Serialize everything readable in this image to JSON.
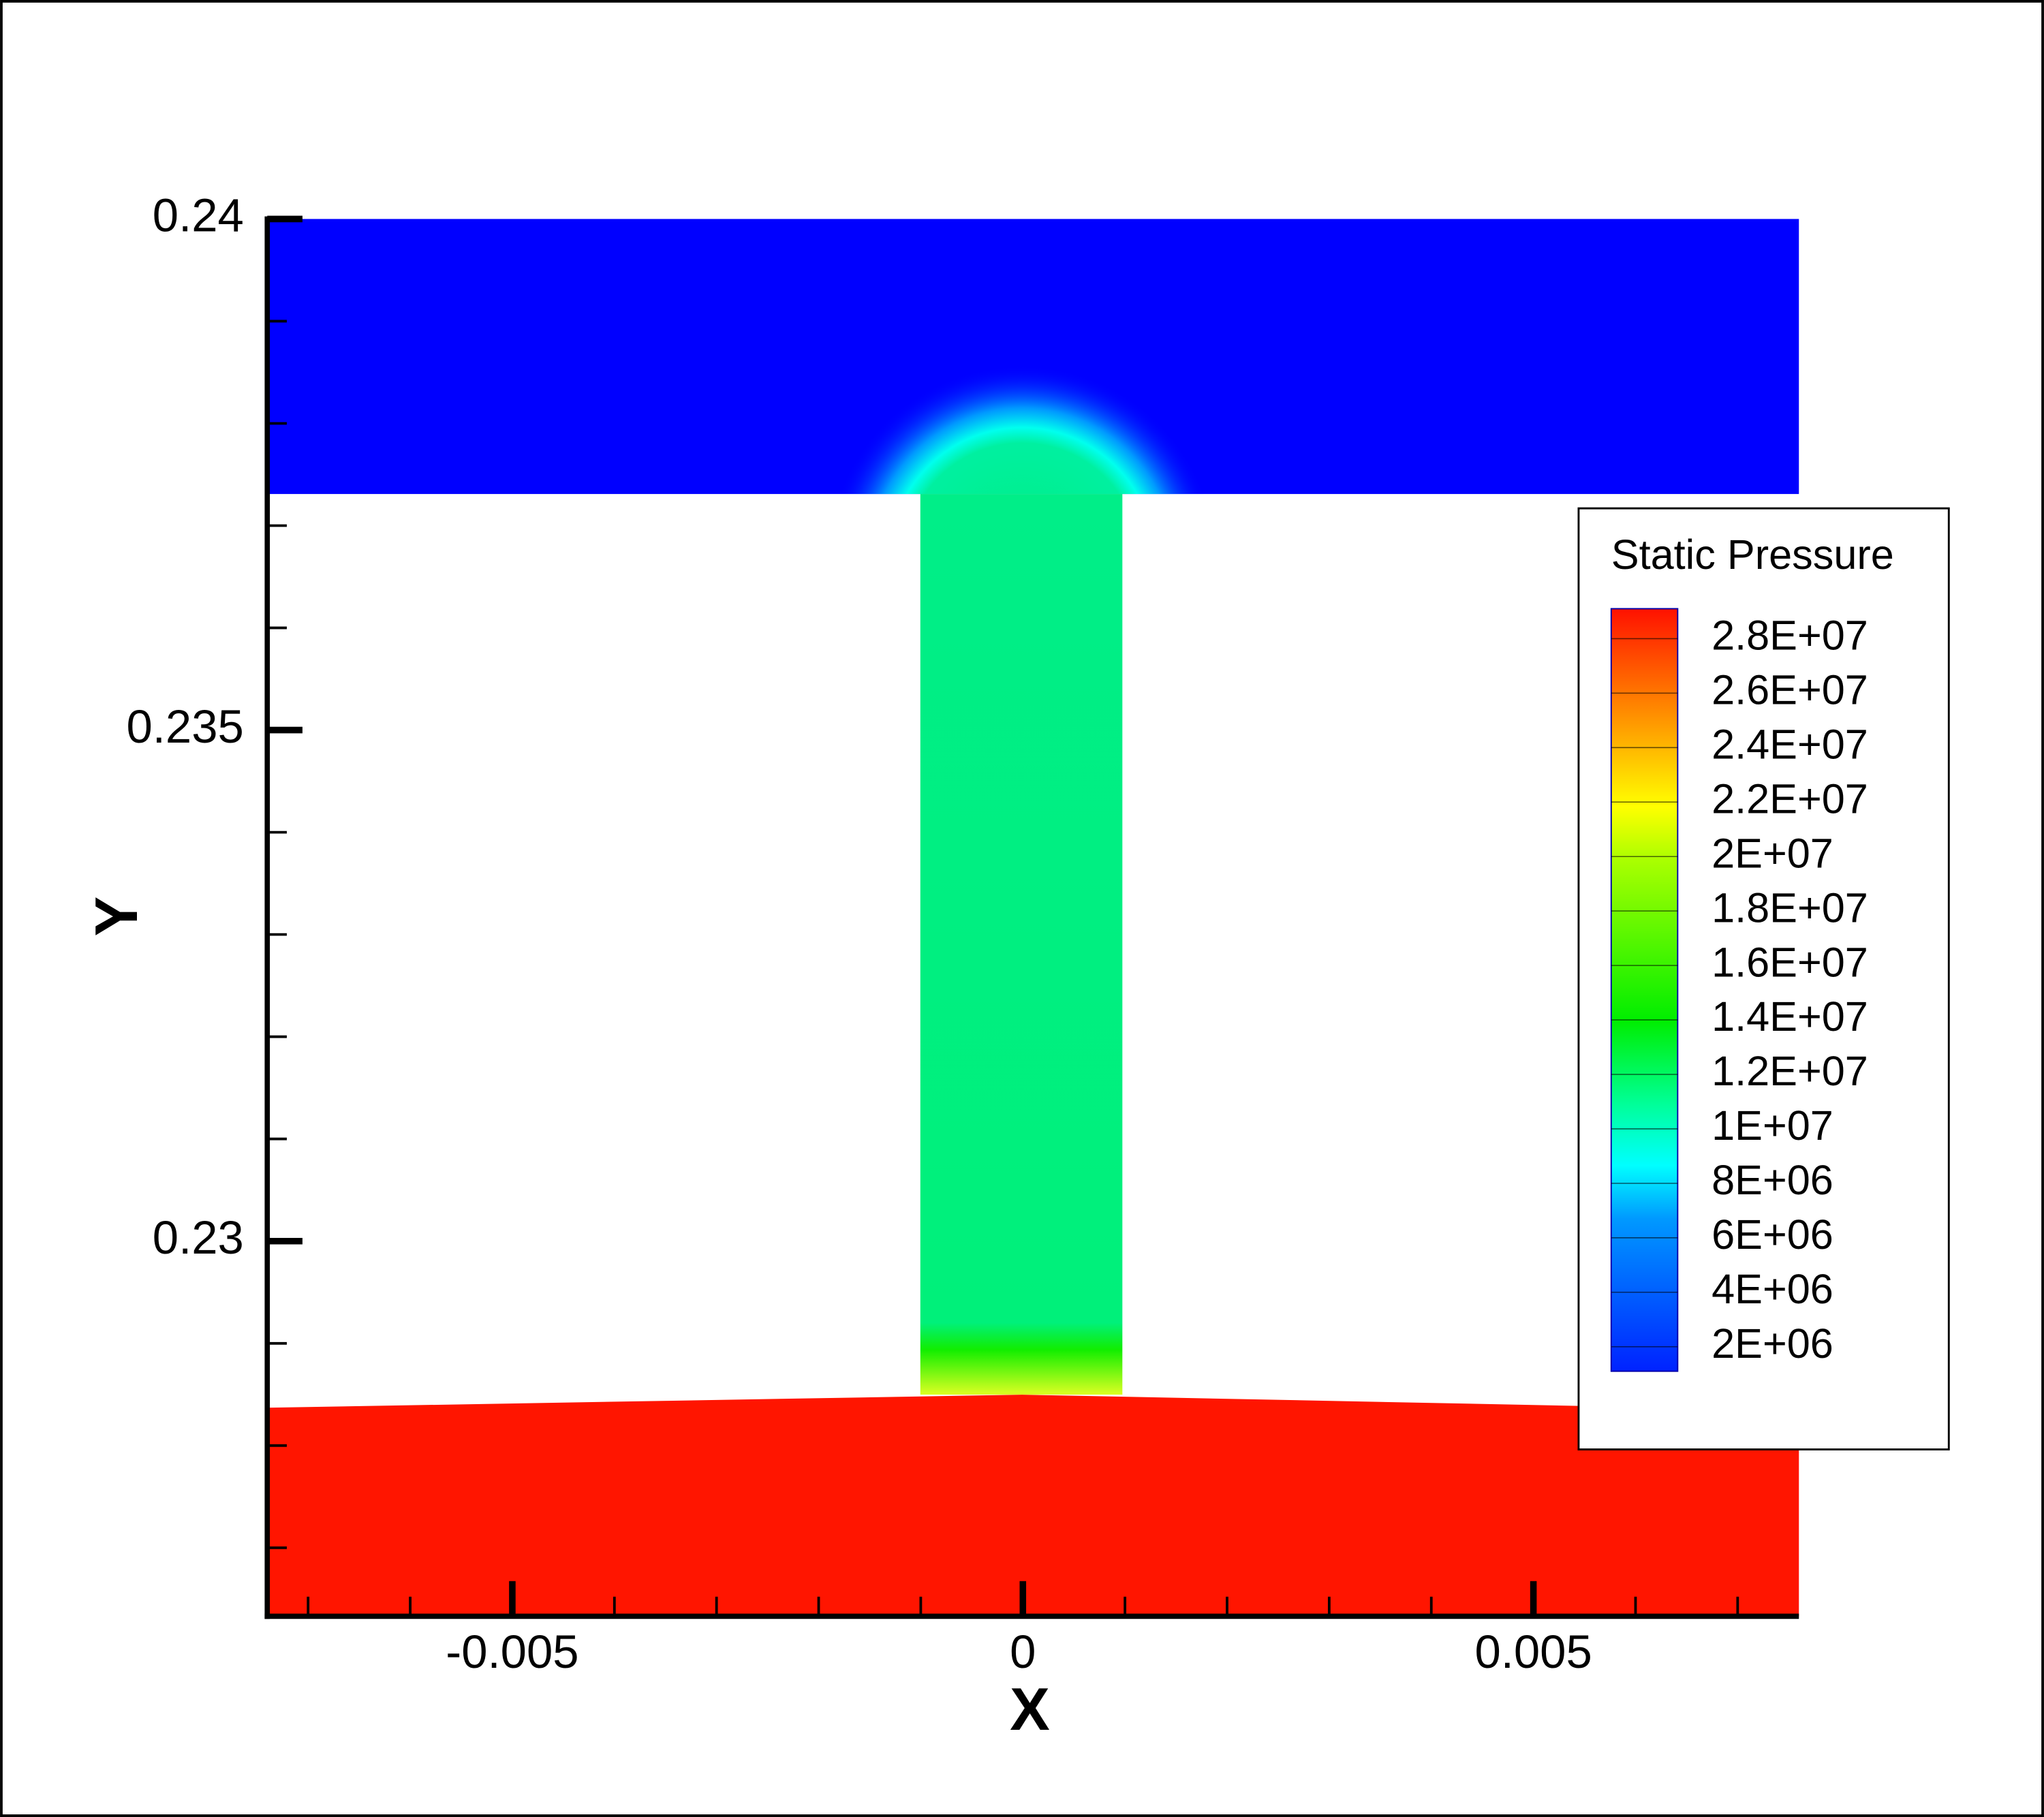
{
  "chart_data": {
    "type": "contour",
    "xlabel": "X",
    "ylabel": "Y",
    "xlim": [
      -0.0074,
      0.0076
    ],
    "ylim": [
      0.22633,
      0.24
    ],
    "xticks": [
      -0.005,
      0,
      0.005
    ],
    "yticks": [
      0.23,
      0.235,
      0.24
    ],
    "xminorticks": [
      -0.007,
      -0.006,
      -0.004,
      -0.003,
      -0.002,
      -0.001,
      0.001,
      0.002,
      0.003,
      0.004,
      0.006,
      0.007
    ],
    "yminorticks": [
      0.239,
      0.238,
      0.237,
      0.236,
      0.234,
      0.233,
      0.232,
      0.231,
      0.229,
      0.228,
      0.227
    ],
    "legend": {
      "title": "Static Pressure",
      "clim": [
        1100000,
        29100000
      ],
      "levels": [
        {
          "value": 28000000,
          "label": "2.8E+07"
        },
        {
          "value": 26000000,
          "label": "2.6E+07"
        },
        {
          "value": 24000000,
          "label": "2.4E+07"
        },
        {
          "value": 22000000,
          "label": "2.2E+07"
        },
        {
          "value": 20000000,
          "label": "2E+07"
        },
        {
          "value": 18000000,
          "label": "1.8E+07"
        },
        {
          "value": 16000000,
          "label": "1.6E+07"
        },
        {
          "value": 14000000,
          "label": "1.4E+07"
        },
        {
          "value": 12000000,
          "label": "1.2E+07"
        },
        {
          "value": 10000000,
          "label": "1E+07"
        },
        {
          "value": 8000000,
          "label": "8E+06"
        },
        {
          "value": 6000000,
          "label": "6E+06"
        },
        {
          "value": 4000000,
          "label": "4E+06"
        },
        {
          "value": 2000000,
          "label": "2E+06"
        }
      ]
    }
  }
}
